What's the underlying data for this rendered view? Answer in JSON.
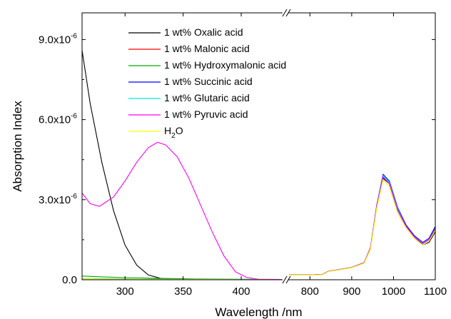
{
  "chart_data": {
    "type": "line",
    "title": "",
    "xlabel": "Wavelength /nm",
    "ylabel": "Absorption Index",
    "xaxis_break": true,
    "x_segments": [
      {
        "range": [
          263,
          435
        ],
        "ticks": [
          300,
          350,
          400
        ]
      },
      {
        "range": [
          750,
          1100
        ],
        "ticks": [
          800,
          900,
          1000,
          1100
        ]
      }
    ],
    "ylim": [
      0,
      1e-05
    ],
    "y_ticks": [
      {
        "value": 0,
        "mantissa": "0.0",
        "exp": ""
      },
      {
        "value": 3e-06,
        "mantissa": "3.0x10",
        "exp": "-6"
      },
      {
        "value": 6e-06,
        "mantissa": "6.0x10",
        "exp": "-6"
      },
      {
        "value": 9e-06,
        "mantissa": "9.0x10",
        "exp": "-6"
      }
    ],
    "legend_position": "top-left",
    "series": [
      {
        "name": "1 wt% Oxalic acid",
        "color": "#000000",
        "segment1": [
          [
            263,
            8.6e-06
          ],
          [
            270,
            6.6e-06
          ],
          [
            280,
            4.4e-06
          ],
          [
            290,
            2.6e-06
          ],
          [
            300,
            1.3e-06
          ],
          [
            310,
            5.5e-07
          ],
          [
            320,
            1.8e-07
          ],
          [
            330,
            6e-08
          ],
          [
            340,
            2e-08
          ],
          [
            360,
            1e-08
          ],
          [
            400,
            5e-09
          ],
          [
            435,
            3e-09
          ]
        ],
        "segment2": [
          [
            750,
            1.8e-07
          ],
          [
            800,
            1.8e-07
          ],
          [
            830,
            2e-07
          ],
          [
            845,
            3.2e-07
          ],
          [
            870,
            3.8e-07
          ],
          [
            900,
            4.6e-07
          ],
          [
            930,
            6.4e-07
          ],
          [
            945,
            1.2e-06
          ],
          [
            960,
            2.8e-06
          ],
          [
            975,
            3.8e-06
          ],
          [
            990,
            3.6e-06
          ],
          [
            1010,
            2.6e-06
          ],
          [
            1030,
            2e-06
          ],
          [
            1050,
            1.6e-06
          ],
          [
            1070,
            1.3e-06
          ],
          [
            1085,
            1.4e-06
          ],
          [
            1100,
            1.8e-06
          ]
        ]
      },
      {
        "name": "1 wt% Malonic acid",
        "color": "#ff0000",
        "segment1": [
          [
            263,
            3e-08
          ],
          [
            300,
            2e-08
          ],
          [
            350,
            1e-08
          ],
          [
            400,
            5e-09
          ],
          [
            435,
            3e-09
          ]
        ],
        "segment2": [
          [
            750,
            1.8e-07
          ],
          [
            800,
            1.8e-07
          ],
          [
            830,
            2e-07
          ],
          [
            845,
            3.2e-07
          ],
          [
            870,
            3.8e-07
          ],
          [
            900,
            4.6e-07
          ],
          [
            930,
            6.4e-07
          ],
          [
            945,
            1.2e-06
          ],
          [
            960,
            2.8e-06
          ],
          [
            975,
            3.85e-06
          ],
          [
            990,
            3.6e-06
          ],
          [
            1010,
            2.6e-06
          ],
          [
            1030,
            2e-06
          ],
          [
            1050,
            1.6e-06
          ],
          [
            1070,
            1.35e-06
          ],
          [
            1085,
            1.5e-06
          ],
          [
            1100,
            1.9e-06
          ]
        ]
      },
      {
        "name": "1 wt% Hydroxymalonic acid",
        "color": "#00aa00",
        "segment1": [
          [
            263,
            1.4e-07
          ],
          [
            280,
            1.1e-07
          ],
          [
            300,
            8e-08
          ],
          [
            330,
            5e-08
          ],
          [
            360,
            3e-08
          ],
          [
            400,
            2e-08
          ],
          [
            435,
            1e-08
          ]
        ],
        "segment2": [
          [
            750,
            1.8e-07
          ],
          [
            800,
            1.8e-07
          ],
          [
            830,
            2e-07
          ],
          [
            845,
            3.2e-07
          ],
          [
            870,
            3.8e-07
          ],
          [
            900,
            4.6e-07
          ],
          [
            930,
            6.4e-07
          ],
          [
            945,
            1.2e-06
          ],
          [
            960,
            2.8e-06
          ],
          [
            975,
            3.9e-06
          ],
          [
            990,
            3.65e-06
          ],
          [
            1010,
            2.65e-06
          ],
          [
            1030,
            2e-06
          ],
          [
            1050,
            1.6e-06
          ],
          [
            1070,
            1.35e-06
          ],
          [
            1085,
            1.5e-06
          ],
          [
            1100,
            1.95e-06
          ]
        ]
      },
      {
        "name": "1 wt% Succinic acid",
        "color": "#0000ff",
        "segment1": [
          [
            263,
            4e-08
          ],
          [
            300,
            3e-08
          ],
          [
            350,
            1.5e-08
          ],
          [
            400,
            8e-09
          ],
          [
            435,
            5e-09
          ]
        ],
        "segment2": [
          [
            750,
            1.8e-07
          ],
          [
            800,
            1.8e-07
          ],
          [
            830,
            2e-07
          ],
          [
            845,
            3.2e-07
          ],
          [
            870,
            3.8e-07
          ],
          [
            900,
            4.6e-07
          ],
          [
            930,
            6.4e-07
          ],
          [
            945,
            1.2e-06
          ],
          [
            960,
            2.8e-06
          ],
          [
            975,
            3.95e-06
          ],
          [
            990,
            3.7e-06
          ],
          [
            1010,
            2.7e-06
          ],
          [
            1030,
            2.05e-06
          ],
          [
            1050,
            1.65e-06
          ],
          [
            1070,
            1.4e-06
          ],
          [
            1085,
            1.55e-06
          ],
          [
            1100,
            2e-06
          ]
        ]
      },
      {
        "name": "1 wt% Glutaric acid",
        "color": "#00e5e5",
        "segment1": [
          [
            263,
            4e-08
          ],
          [
            300,
            3e-08
          ],
          [
            350,
            1.5e-08
          ],
          [
            400,
            8e-09
          ],
          [
            435,
            5e-09
          ]
        ],
        "segment2": [
          [
            750,
            1.8e-07
          ],
          [
            800,
            1.8e-07
          ],
          [
            830,
            2e-07
          ],
          [
            845,
            3.2e-07
          ],
          [
            870,
            3.8e-07
          ],
          [
            900,
            4.6e-07
          ],
          [
            930,
            6.4e-07
          ],
          [
            945,
            1.2e-06
          ],
          [
            960,
            2.8e-06
          ],
          [
            975,
            3.9e-06
          ],
          [
            990,
            3.65e-06
          ],
          [
            1010,
            2.65e-06
          ],
          [
            1030,
            2e-06
          ],
          [
            1050,
            1.6e-06
          ],
          [
            1070,
            1.35e-06
          ],
          [
            1085,
            1.5e-06
          ],
          [
            1100,
            1.9e-06
          ]
        ]
      },
      {
        "name": "1 wt% Pyruvic acid",
        "color": "#ff00ff",
        "segment1": [
          [
            263,
            3.25e-06
          ],
          [
            270,
            2.85e-06
          ],
          [
            278,
            2.75e-06
          ],
          [
            290,
            3.1e-06
          ],
          [
            300,
            3.7e-06
          ],
          [
            310,
            4.4e-06
          ],
          [
            320,
            4.95e-06
          ],
          [
            328,
            5.15e-06
          ],
          [
            335,
            5.05e-06
          ],
          [
            345,
            4.6e-06
          ],
          [
            355,
            3.8e-06
          ],
          [
            365,
            2.8e-06
          ],
          [
            375,
            1.8e-06
          ],
          [
            385,
            9e-07
          ],
          [
            395,
            3e-07
          ],
          [
            405,
            8e-08
          ],
          [
            415,
            2e-08
          ],
          [
            435,
            1e-08
          ]
        ],
        "segment2": [
          [
            750,
            1.8e-07
          ],
          [
            800,
            1.8e-07
          ],
          [
            830,
            2e-07
          ],
          [
            845,
            3.2e-07
          ],
          [
            870,
            3.8e-07
          ],
          [
            900,
            4.6e-07
          ],
          [
            930,
            6.4e-07
          ],
          [
            945,
            1.2e-06
          ],
          [
            960,
            2.8e-06
          ],
          [
            975,
            3.85e-06
          ],
          [
            990,
            3.6e-06
          ],
          [
            1010,
            2.6e-06
          ],
          [
            1030,
            2e-06
          ],
          [
            1050,
            1.6e-06
          ],
          [
            1070,
            1.35e-06
          ],
          [
            1085,
            1.5e-06
          ],
          [
            1100,
            1.9e-06
          ]
        ]
      },
      {
        "name": "H",
        "name_sub": "2",
        "name_tail": "O",
        "color": "#ffff00",
        "segment1": [
          [
            263,
            3e-08
          ],
          [
            300,
            2e-08
          ],
          [
            350,
            1e-08
          ],
          [
            400,
            5e-09
          ],
          [
            435,
            3e-09
          ]
        ],
        "segment2": [
          [
            750,
            1.7e-07
          ],
          [
            800,
            1.7e-07
          ],
          [
            830,
            1.9e-07
          ],
          [
            845,
            3.1e-07
          ],
          [
            870,
            3.7e-07
          ],
          [
            900,
            4.5e-07
          ],
          [
            930,
            6.2e-07
          ],
          [
            945,
            1.15e-06
          ],
          [
            960,
            2.7e-06
          ],
          [
            975,
            3.75e-06
          ],
          [
            990,
            3.5e-06
          ],
          [
            1010,
            2.5e-06
          ],
          [
            1030,
            1.95e-06
          ],
          [
            1050,
            1.55e-06
          ],
          [
            1070,
            1.3e-06
          ],
          [
            1085,
            1.45e-06
          ],
          [
            1100,
            1.85e-06
          ]
        ]
      }
    ]
  }
}
